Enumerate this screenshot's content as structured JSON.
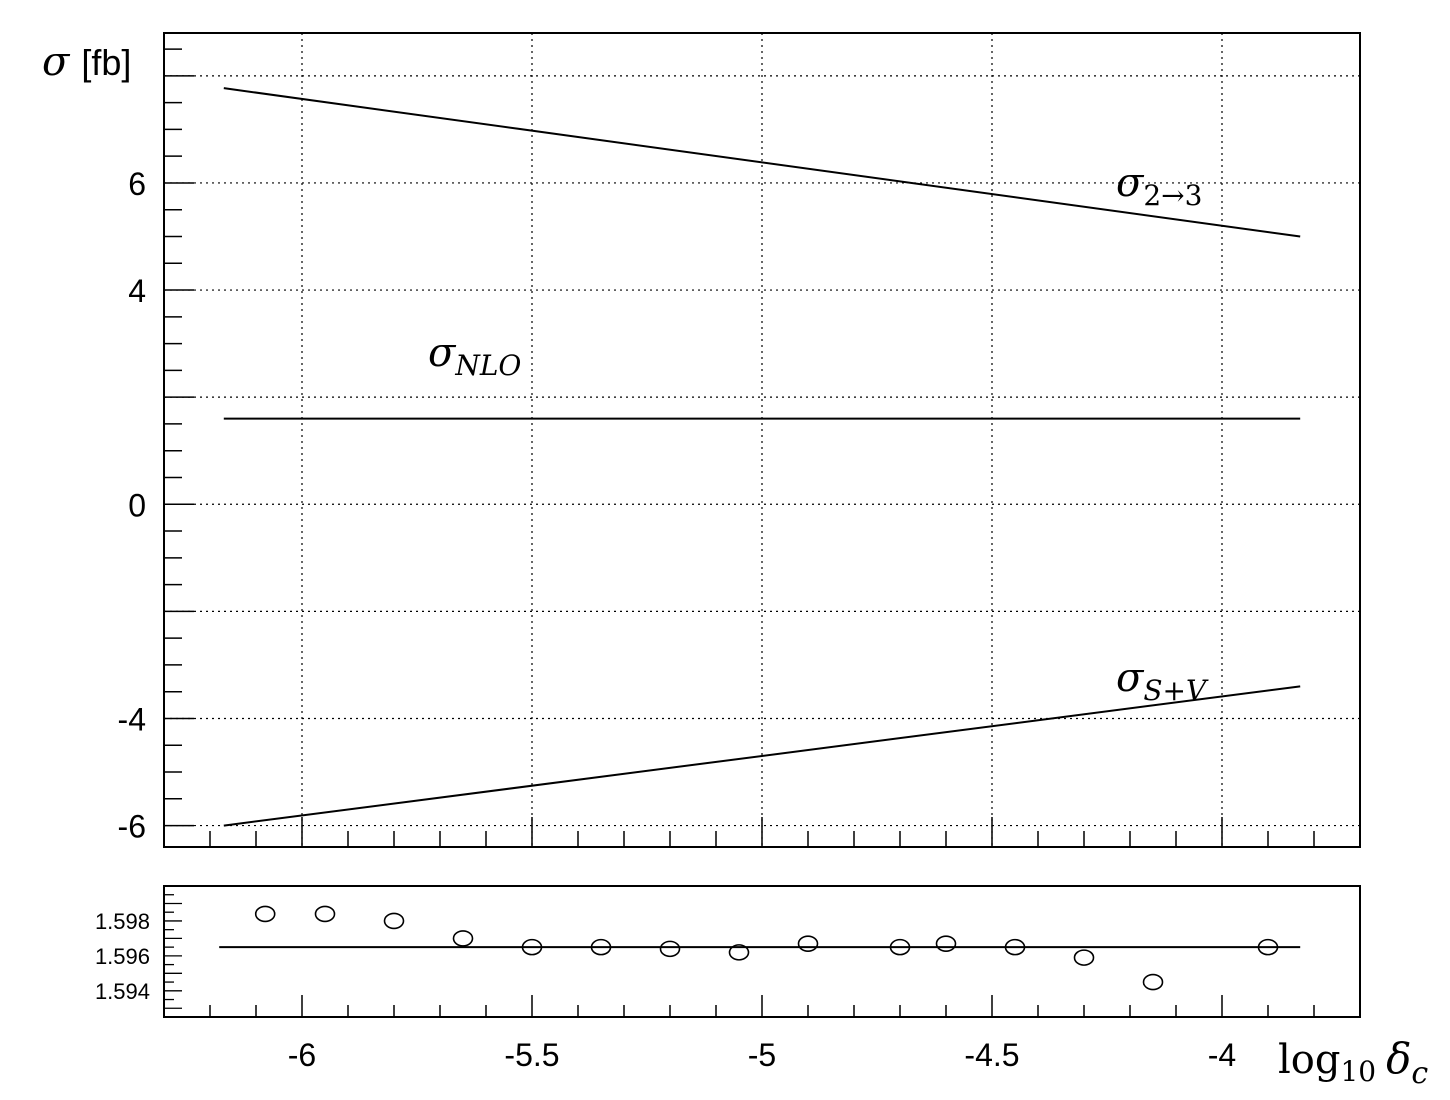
{
  "chart_data": [
    {
      "type": "line",
      "title": "",
      "ylabel_symbol": "σ",
      "ylabel_unit": "[fb]",
      "xlabel": "",
      "xlim": [
        -6.3,
        -3.7
      ],
      "ylim": [
        -6.4,
        8.8
      ],
      "yticks": [
        -6,
        -4,
        0,
        4,
        6
      ],
      "ytick_labels": [
        "-6",
        "-4",
        "0",
        "4",
        "6"
      ],
      "grid": true,
      "series": [
        {
          "key": "sigma23",
          "label_main": "σ",
          "label_sub": "2→3",
          "x": [
            -6.17,
            -3.83
          ],
          "y": [
            7.77,
            5.0
          ]
        },
        {
          "key": "sigmaNLO",
          "label_main": "σ",
          "label_sub": "NLO",
          "x": [
            -6.17,
            -3.83
          ],
          "y": [
            1.6,
            1.6
          ]
        },
        {
          "key": "sigmaSV",
          "label_main": "σ",
          "label_sub": "S+V",
          "x": [
            -6.17,
            -3.83
          ],
          "y": [
            -6.0,
            -3.4
          ]
        }
      ]
    },
    {
      "type": "scatter",
      "xlabel_main": "log",
      "xlabel_sub": "10",
      "xlabel_var": "δ",
      "xlabel_var_sub": "c",
      "xlim": [
        -6.3,
        -3.7
      ],
      "ylim": [
        1.5925,
        1.6
      ],
      "xticks": [
        -6,
        -5.5,
        -5,
        -4.5,
        -4
      ],
      "xtick_labels": [
        "-6",
        "-5.5",
        "-5",
        "-4.5",
        "-4"
      ],
      "yticks": [
        1.594,
        1.596,
        1.598
      ],
      "ytick_labels": [
        "1.594",
        "1.596",
        "1.598"
      ],
      "grid": false,
      "reference_line": 1.5965,
      "points": {
        "x": [
          -6.08,
          -5.95,
          -5.8,
          -5.65,
          -5.5,
          -5.35,
          -5.2,
          -5.05,
          -4.9,
          -4.7,
          -4.6,
          -4.45,
          -4.3,
          -4.15,
          -3.9
        ],
        "y": [
          1.5984,
          1.5984,
          1.598,
          1.597,
          1.5965,
          1.5965,
          1.5964,
          1.5962,
          1.5967,
          1.5965,
          1.5967,
          1.5965,
          1.5959,
          1.5945,
          1.5965
        ]
      }
    }
  ]
}
